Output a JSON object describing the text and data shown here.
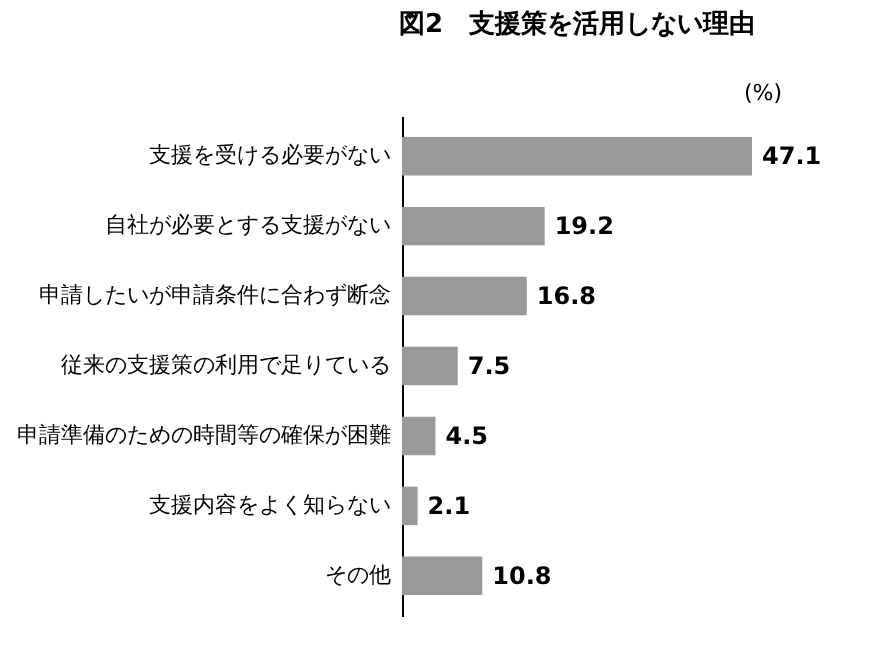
{
  "chart_data": {
    "type": "bar",
    "orientation": "horizontal",
    "title": "図2　支援策を活用しない理由",
    "categories": [
      "支援を受ける必要がない",
      "自社が必要とする支援がない",
      "申請したいが申請条件に合わず断念",
      "従来の支援策の利用で足りている",
      "申請準備のための時間等の確保が困難",
      "支援内容をよく知らない",
      "その他"
    ],
    "values": [
      47.1,
      19.2,
      16.8,
      7.5,
      4.5,
      2.1,
      10.8
    ],
    "color": "#999999",
    "data_labels": true,
    "annotations": [
      "(%)"
    ],
    "grid": false
  }
}
